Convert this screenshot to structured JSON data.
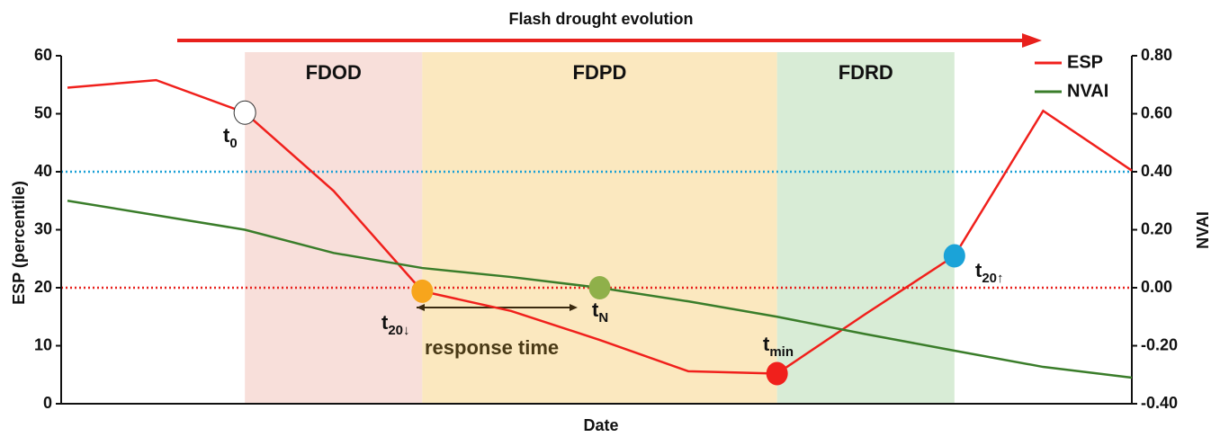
{
  "chart_data": {
    "type": "line",
    "title": "Flash drought evolution",
    "xlabel": "Date",
    "ylabel": "ESP  (percentile)",
    "y2label": "NVAI",
    "categories": [
      null,
      null,
      null,
      null,
      null,
      null,
      null,
      null,
      null,
      null,
      null,
      null,
      null
    ],
    "series": [
      {
        "name": "ESP",
        "color": "#f0201c",
        "values": [
          54.5,
          55.8,
          50.2,
          36.7,
          19.4,
          16,
          11,
          5.6,
          5.2,
          15.5,
          25.5,
          50.5,
          40.2
        ]
      },
      {
        "name": "NVAI",
        "color": "#3a7d2a",
        "axis": "y2",
        "values": [
          0.3,
          0.25,
          0.2,
          0.12,
          0.068,
          0.037,
          0.0,
          -0.047,
          -0.1,
          -0.16,
          -0.217,
          -0.273,
          -0.31
        ]
      }
    ],
    "ylim": [
      0,
      60
    ],
    "yticks": [
      0,
      10,
      20,
      30,
      40,
      50,
      60
    ],
    "y2lim": [
      -0.4,
      0.8
    ],
    "y2ticks": [
      {
        "value": -0.4,
        "label": "-0.40"
      },
      {
        "value": -0.2,
        "label": "-0.20"
      },
      {
        "value": 0,
        "label": "0.00"
      },
      {
        "value": 0.2,
        "label": "0.20"
      },
      {
        "value": 0.4,
        "label": "0.40"
      },
      {
        "value": 0.6,
        "label": "0.60"
      },
      {
        "value": 0.8,
        "label": "0.80"
      }
    ],
    "phases": [
      {
        "name": "FDOD",
        "color": "#f7dcd6",
        "from": 2,
        "to": 4
      },
      {
        "name": "FDPD",
        "color": "#fbe6b8",
        "from": 4,
        "to": 8
      },
      {
        "name": "FDRD",
        "color": "#d4ead2",
        "from": 8,
        "to": 10
      }
    ],
    "hlines": [
      {
        "value": 40,
        "color": "#1aa0d6"
      },
      {
        "value": 20,
        "color": "#e8201c"
      }
    ],
    "markers": [
      {
        "series": 0,
        "index": 2,
        "color": "#ffffff"
      },
      {
        "series": 0,
        "index": 4,
        "color": "#f7a51c"
      },
      {
        "series": 1,
        "index": 6,
        "color": "#8fb04a"
      },
      {
        "series": 0,
        "index": 8,
        "color": "#f0201c"
      },
      {
        "series": 0,
        "index": 10,
        "color": "#1ba3d8"
      }
    ],
    "annotations": [
      {
        "text": "t",
        "sub": "0"
      },
      {
        "text": "t",
        "sub": "20↓"
      },
      {
        "text": "t",
        "sub": "N"
      },
      {
        "text": "t",
        "sub": "min"
      },
      {
        "text": "t",
        "sub": "20↑"
      },
      {
        "text": "response time"
      }
    ],
    "legend": "upper right"
  }
}
